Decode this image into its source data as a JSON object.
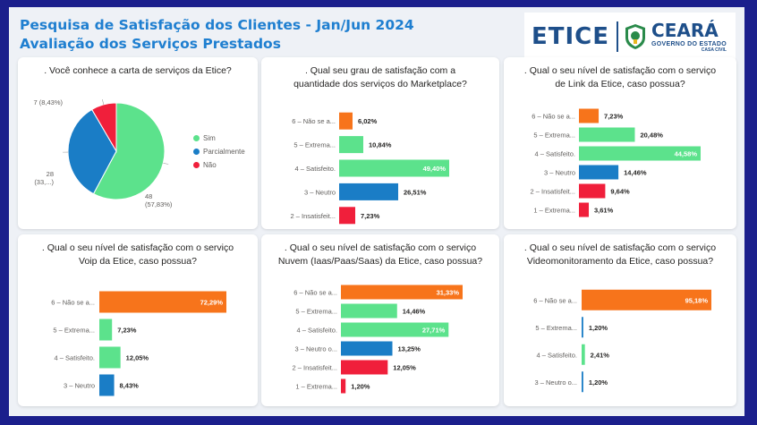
{
  "header": {
    "title_line1": "Pesquisa de Satisfação  dos Clientes - Jan/Jun 2024",
    "title_line2": "Avaliação dos Serviços Prestados"
  },
  "logo": {
    "etice": "ETICE",
    "ceara": "CEARÁ",
    "governo": "GOVERNO DO ESTADO",
    "casa": "CASA CIVIL"
  },
  "colors": {
    "orange": "#f7741b",
    "green": "#5ce28c",
    "blue": "#1a7dc6",
    "red": "#f01f3b"
  },
  "chart_data": [
    {
      "type": "pie",
      "title": ". Você conhece a carta de serviços da Etice?",
      "slices": [
        {
          "name": "Sim",
          "value": 48,
          "pct": "57,83%",
          "color": "#5ce28c"
        },
        {
          "name": "Parcialmente",
          "value": 28,
          "pct": "33,...",
          "color": "#1a7dc6"
        },
        {
          "name": "Não",
          "value": 7,
          "pct": "8,43%",
          "color": "#f01f3b"
        }
      ],
      "slice_labels": [
        "48\n(57,83%)",
        "28\n(33,...)",
        "7 (8,43%)"
      ],
      "legend": [
        "Sim",
        "Parcialmente",
        "Não"
      ],
      "legend_position": "right"
    },
    {
      "type": "bar",
      "title": ". Qual seu grau de satisfação com a\nquantidade dos serviços do Marketplace?",
      "categories": [
        "6 – Não se a...",
        "5 – Extrema...",
        "4 – Satisfeito.",
        "3 – Neutro",
        "2 – Insatisfeit..."
      ],
      "values": [
        6.02,
        10.84,
        49.4,
        26.51,
        7.23
      ],
      "labels": [
        "6,02%",
        "10,84%",
        "49,40%",
        "26,51%",
        "7,23%"
      ],
      "colors": [
        "#f7741b",
        "#5ce28c",
        "#5ce28c",
        "#1a7dc6",
        "#f01f3b"
      ],
      "xlim": [
        0,
        49.4
      ]
    },
    {
      "type": "bar",
      "title": ". Qual o seu nível de satisfação com o serviço\nde Link da Etice, caso possua?",
      "categories": [
        "6 – Não se a...",
        "5 – Extrema...",
        "4 – Satisfeito.",
        "3 – Neutro",
        "2 – Insatisfeit...",
        "1 – Extrema..."
      ],
      "values": [
        7.23,
        20.48,
        44.58,
        14.46,
        9.64,
        3.61
      ],
      "labels": [
        "7,23%",
        "20,48%",
        "44,58%",
        "14,46%",
        "9,64%",
        "3,61%"
      ],
      "colors": [
        "#f7741b",
        "#5ce28c",
        "#5ce28c",
        "#1a7dc6",
        "#f01f3b",
        "#f01f3b"
      ],
      "xlim": [
        0,
        44.58
      ]
    },
    {
      "type": "bar",
      "title": ". Qual o seu nível de satisfação com o serviço\nVoip da Etice, caso possua?",
      "categories": [
        "6 – Não se a...",
        "5 – Extrema...",
        "4 – Satisfeito.",
        "3 – Neutro"
      ],
      "values": [
        72.29,
        7.23,
        12.05,
        8.43
      ],
      "labels": [
        "72,29%",
        "7,23%",
        "12,05%",
        "8,43%"
      ],
      "colors": [
        "#f7741b",
        "#5ce28c",
        "#5ce28c",
        "#1a7dc6"
      ],
      "xlim": [
        0,
        72.29
      ]
    },
    {
      "type": "bar",
      "title": ". Qual o seu nível de satisfação com o serviço\nNuvem (Iaas/Paas/Saas) da Etice, caso possua?",
      "categories": [
        "6 – Não se a...",
        "5 – Extrema...",
        "4 – Satisfeito.",
        "3 – Neutro o...",
        "2 – Insatisfeit...",
        "1 – Extrema..."
      ],
      "values": [
        31.33,
        14.46,
        27.71,
        13.25,
        12.05,
        1.2
      ],
      "labels": [
        "31,33%",
        "14,46%",
        "27,71%",
        "13,25%",
        "12,05%",
        "1,20%"
      ],
      "colors": [
        "#f7741b",
        "#5ce28c",
        "#5ce28c",
        "#1a7dc6",
        "#f01f3b",
        "#f01f3b"
      ],
      "xlim": [
        0,
        31.33
      ]
    },
    {
      "type": "bar",
      "title": ". Qual o seu nível de satisfação com o serviço\nVideomonitoramento da Etice, caso possua?",
      "categories": [
        "6 – Não se a...",
        "5 – Extrema...",
        "4 – Satisfeito.",
        "3 – Neutro o..."
      ],
      "values": [
        95.18,
        1.2,
        2.41,
        1.2
      ],
      "labels": [
        "95,18%",
        "1,20%",
        "2,41%",
        "1,20%"
      ],
      "colors": [
        "#f7741b",
        "#1a7dc6",
        "#5ce28c",
        "#1a7dc6"
      ],
      "xlim": [
        0,
        95.18
      ]
    }
  ]
}
